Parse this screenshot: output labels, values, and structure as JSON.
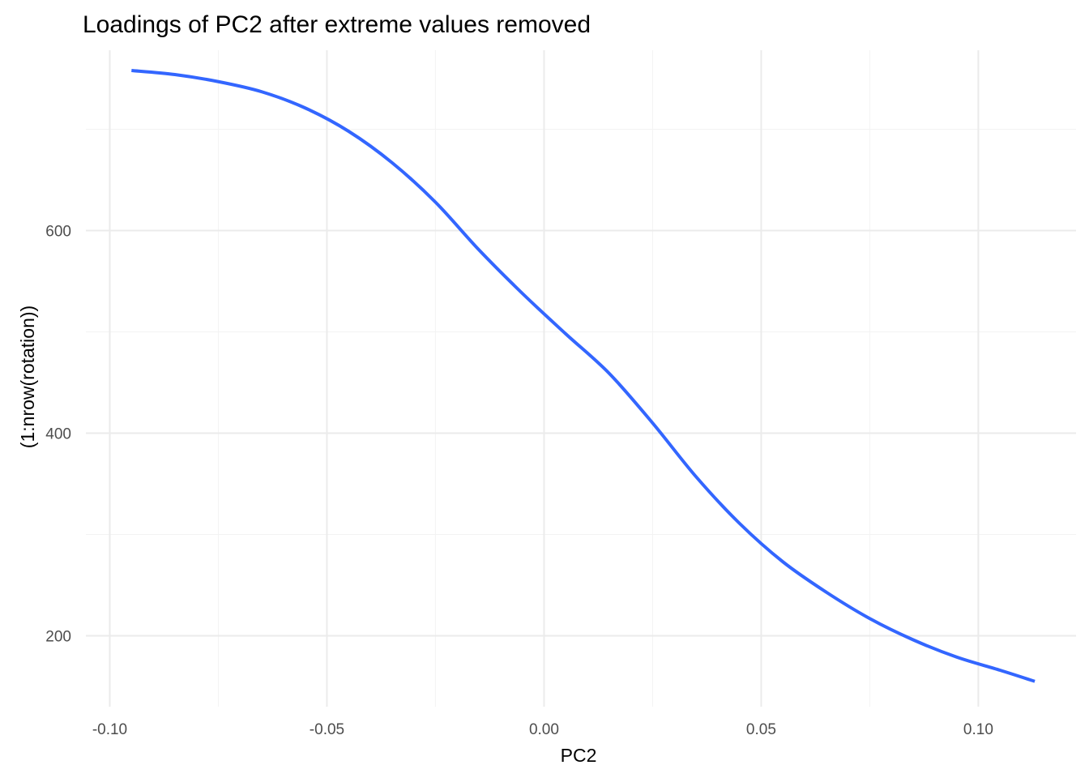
{
  "chart_data": {
    "type": "line",
    "title": "Loadings of PC2 after extreme values removed",
    "xlabel": "PC2",
    "ylabel": "(1:nrow(rotation))",
    "xlim": [
      -0.1055,
      0.1225
    ],
    "ylim": [
      130,
      778
    ],
    "x_ticks": [
      -0.1,
      -0.05,
      0.0,
      0.05,
      0.1
    ],
    "x_tick_labels": [
      "-0.10",
      "-0.05",
      "0.00",
      "0.05",
      "0.10"
    ],
    "y_ticks": [
      200,
      400,
      600
    ],
    "y_tick_labels": [
      "200",
      "400",
      "600"
    ],
    "grid": true,
    "legend": "none",
    "series": [
      {
        "color": "#3366ff",
        "x": [
          -0.095,
          -0.085,
          -0.075,
          -0.065,
          -0.055,
          -0.045,
          -0.035,
          -0.025,
          -0.015,
          -0.005,
          0.005,
          0.015,
          0.025,
          0.035,
          0.045,
          0.055,
          0.065,
          0.075,
          0.085,
          0.095,
          0.105,
          0.113
        ],
        "y": [
          758,
          754,
          747,
          737,
          721,
          698,
          667,
          628,
          581,
          538,
          498,
          459,
          410,
          357,
          311,
          273,
          243,
          217,
          196,
          179,
          166,
          155
        ]
      }
    ]
  }
}
